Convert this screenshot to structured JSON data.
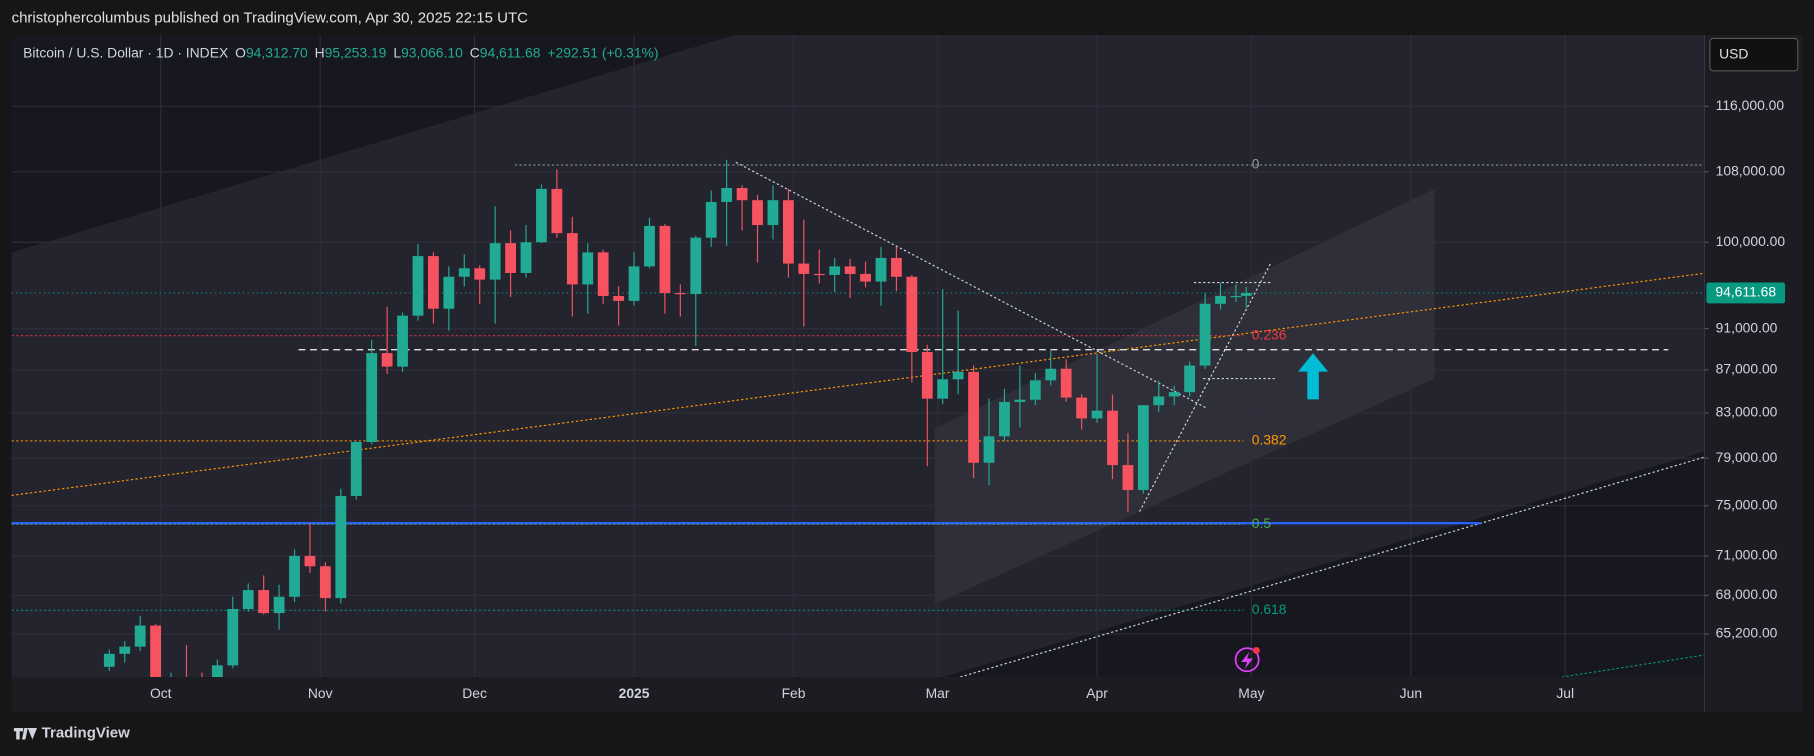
{
  "header": {
    "title": "christophercolumbus published on TradingView.com, Apr 30, 2025 22:15 UTC"
  },
  "footer": {
    "brand": "TradingView"
  },
  "chart_data": {
    "type": "candlestick",
    "title": "Bitcoin / U.S. Dollar · 1D · INDEX",
    "legend": {
      "open_key": "O",
      "open": "94,312.70",
      "high_key": "H",
      "high": "95,253.19",
      "low_key": "L",
      "low": "93,066.10",
      "close_key": "C",
      "close": "94,611.68",
      "change": "+292.51 (+0.31%)"
    },
    "currency": "USD",
    "last_price": {
      "value": 94611.68,
      "label": "94,611.68"
    },
    "log_scale": true,
    "grid": true,
    "colors": {
      "up": "#22ab94",
      "down": "#f7525f"
    },
    "xlim": [
      "2024-09-02",
      "2025-07-28"
    ],
    "ylim": [
      62200,
      125400
    ],
    "yticks": [
      {
        "value": 116000,
        "label": "116,000.00"
      },
      {
        "value": 108000,
        "label": "108,000.00"
      },
      {
        "value": 100000,
        "label": "100,000.00"
      },
      {
        "value": 91000,
        "label": "91,000.00"
      },
      {
        "value": 87000,
        "label": "87,000.00"
      },
      {
        "value": 83000,
        "label": "83,000.00"
      },
      {
        "value": 79000,
        "label": "79,000.00"
      },
      {
        "value": 75000,
        "label": "75,000.00"
      },
      {
        "value": 71000,
        "label": "71,000.00"
      },
      {
        "value": 68000,
        "label": "68,000.00"
      },
      {
        "value": 65200,
        "label": "65,200.00"
      }
    ],
    "xticks": [
      {
        "value": "2024-10-01",
        "label": "Oct"
      },
      {
        "value": "2024-11-01",
        "label": "Nov"
      },
      {
        "value": "2024-12-01",
        "label": "Dec"
      },
      {
        "value": "2025-01-01",
        "label": "2025"
      },
      {
        "value": "2025-02-01",
        "label": "Feb"
      },
      {
        "value": "2025-03-01",
        "label": "Mar"
      },
      {
        "value": "2025-04-01",
        "label": "Apr"
      },
      {
        "value": "2025-05-01",
        "label": "May"
      },
      {
        "value": "2025-06-01",
        "label": "Jun"
      },
      {
        "value": "2025-07-01",
        "label": "Jul"
      }
    ],
    "fib_levels": [
      {
        "label": "0",
        "value": 108800,
        "color": "#9598a1"
      },
      {
        "label": "0.236",
        "value": 90300,
        "color": "#f23645"
      },
      {
        "label": "0.382",
        "value": 80500,
        "color": "#ff9800"
      },
      {
        "label": "0.5",
        "value": 73500,
        "color": "#4caf50"
      },
      {
        "label": "0.618",
        "value": 66900,
        "color": "#089981"
      }
    ],
    "x": [
      "2024-09-21",
      "2024-09-24",
      "2024-09-27",
      "2024-09-30",
      "2024-10-03",
      "2024-10-06",
      "2024-10-09",
      "2024-10-12",
      "2024-10-15",
      "2024-10-18",
      "2024-10-21",
      "2024-10-24",
      "2024-10-27",
      "2024-10-30",
      "2024-11-02",
      "2024-11-05",
      "2024-11-08",
      "2024-11-11",
      "2024-11-14",
      "2024-11-17",
      "2024-11-20",
      "2024-11-23",
      "2024-11-26",
      "2024-11-29",
      "2024-12-02",
      "2024-12-05",
      "2024-12-08",
      "2024-12-11",
      "2024-12-14",
      "2024-12-17",
      "2024-12-20",
      "2024-12-23",
      "2024-12-26",
      "2024-12-29",
      "2025-01-01",
      "2025-01-04",
      "2025-01-07",
      "2025-01-10",
      "2025-01-13",
      "2025-01-16",
      "2025-01-19",
      "2025-01-22",
      "2025-01-25",
      "2025-01-28",
      "2025-01-31",
      "2025-02-03",
      "2025-02-06",
      "2025-02-09",
      "2025-02-12",
      "2025-02-15",
      "2025-02-18",
      "2025-02-21",
      "2025-02-24",
      "2025-02-27",
      "2025-03-02",
      "2025-03-05",
      "2025-03-08",
      "2025-03-11",
      "2025-03-14",
      "2025-03-17",
      "2025-03-20",
      "2025-03-23",
      "2025-03-26",
      "2025-03-29",
      "2025-04-01",
      "2025-04-04",
      "2025-04-07",
      "2025-04-10",
      "2025-04-13",
      "2025-04-16",
      "2025-04-19",
      "2025-04-22",
      "2025-04-25",
      "2025-04-28",
      "2025-04-30"
    ],
    "open": [
      62900,
      63800,
      64300,
      65800,
      61000,
      62200,
      62100,
      60300,
      63000,
      67000,
      68400,
      66700,
      67900,
      71000,
      70200,
      67800,
      75800,
      80400,
      88600,
      87300,
      92300,
      98500,
      93000,
      96300,
      97200,
      96000,
      99900,
      96700,
      100000,
      106000,
      101000,
      95500,
      98900,
      94300,
      93800,
      97400,
      101800,
      94600,
      94500,
      100500,
      104500,
      106100,
      104700,
      101900,
      104700,
      97700,
      96600,
      96500,
      97400,
      96600,
      95800,
      98300,
      96300,
      88700,
      84300,
      86100,
      86800,
      78600,
      80900,
      84000,
      84200,
      86000,
      87100,
      84400,
      82500,
      83200,
      78400,
      76300,
      83700,
      84500,
      84900,
      87400,
      93500,
      94300,
      94312.7
    ],
    "high": [
      64100,
      64700,
      66500,
      65900,
      62500,
      64400,
      62500,
      63400,
      67900,
      68900,
      69500,
      68800,
      71500,
      73600,
      70500,
      76400,
      80500,
      89900,
      93200,
      92600,
      99800,
      98900,
      97400,
      98700,
      97500,
      104000,
      101300,
      101900,
      106500,
      108300,
      102800,
      99900,
      99200,
      95300,
      98900,
      102700,
      102000,
      95500,
      100700,
      105800,
      109400,
      106400,
      105300,
      106400,
      106000,
      102500,
      99200,
      98300,
      98200,
      97900,
      99500,
      99500,
      96500,
      89400,
      95000,
      92800,
      87400,
      84300,
      85200,
      87400,
      86700,
      88800,
      88000,
      84700,
      88500,
      84700,
      81200,
      83500,
      86000,
      85500,
      87800,
      94600,
      95700,
      95500,
      95253.19
    ],
    "low": [
      62600,
      63200,
      64000,
      60200,
      60500,
      62000,
      58900,
      60100,
      62800,
      66800,
      66600,
      65500,
      67500,
      69700,
      66800,
      67400,
      75500,
      80200,
      86600,
      86800,
      91800,
      91500,
      90800,
      95300,
      93500,
      91500,
      94200,
      96200,
      99900,
      100500,
      92200,
      92500,
      93500,
      91300,
      93300,
      97200,
      92500,
      92200,
      89300,
      99500,
      99600,
      101300,
      97800,
      100300,
      96200,
      91200,
      95600,
      94700,
      94100,
      95200,
      93300,
      94800,
      85800,
      78300,
      83800,
      84700,
      77300,
      76700,
      80500,
      81700,
      83700,
      85500,
      84000,
      81500,
      82100,
      77200,
      74500,
      76000,
      83100,
      83700,
      84500,
      87100,
      92900,
      93700,
      93066.1
    ],
    "close": [
      63800,
      64300,
      65800,
      61000,
      62200,
      62100,
      60300,
      63000,
      67000,
      68400,
      66700,
      67900,
      71000,
      70200,
      67800,
      75800,
      80400,
      88600,
      87300,
      92300,
      98500,
      93000,
      96300,
      97200,
      96000,
      99900,
      96700,
      100000,
      106000,
      101000,
      95500,
      98900,
      94300,
      93800,
      97400,
      101800,
      94600,
      94500,
      100500,
      104500,
      106100,
      104700,
      101900,
      104700,
      97700,
      96600,
      96500,
      97400,
      96600,
      95800,
      98300,
      96300,
      88700,
      84300,
      86100,
      86800,
      78600,
      80900,
      84000,
      84200,
      86000,
      87100,
      84400,
      82500,
      83200,
      78400,
      76300,
      83700,
      84500,
      84900,
      87400,
      93500,
      94300,
      94300,
      94611.68
    ]
  }
}
